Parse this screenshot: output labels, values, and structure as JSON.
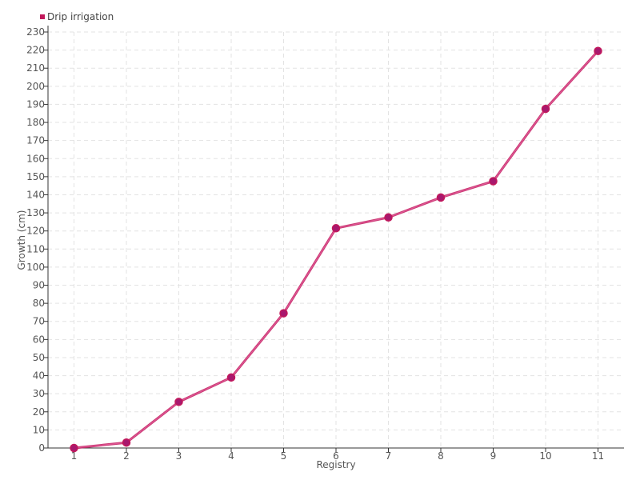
{
  "chart_data": {
    "type": "line",
    "title": "",
    "xlabel": "Registry",
    "ylabel": "Growth (cm)",
    "categories": [
      "1",
      "2",
      "3",
      "4",
      "5",
      "6",
      "7",
      "8",
      "9",
      "10",
      "11"
    ],
    "series": [
      {
        "name": "Drip irrigation",
        "values": [
          0,
          3,
          25.5,
          39,
          74.5,
          121.5,
          127.5,
          138.5,
          147.5,
          187.5,
          219.5
        ],
        "color": "#c2185b"
      }
    ],
    "ylim": [
      0,
      230
    ],
    "ytick_step": 10,
    "grid": true,
    "legend_position": "top-left"
  }
}
